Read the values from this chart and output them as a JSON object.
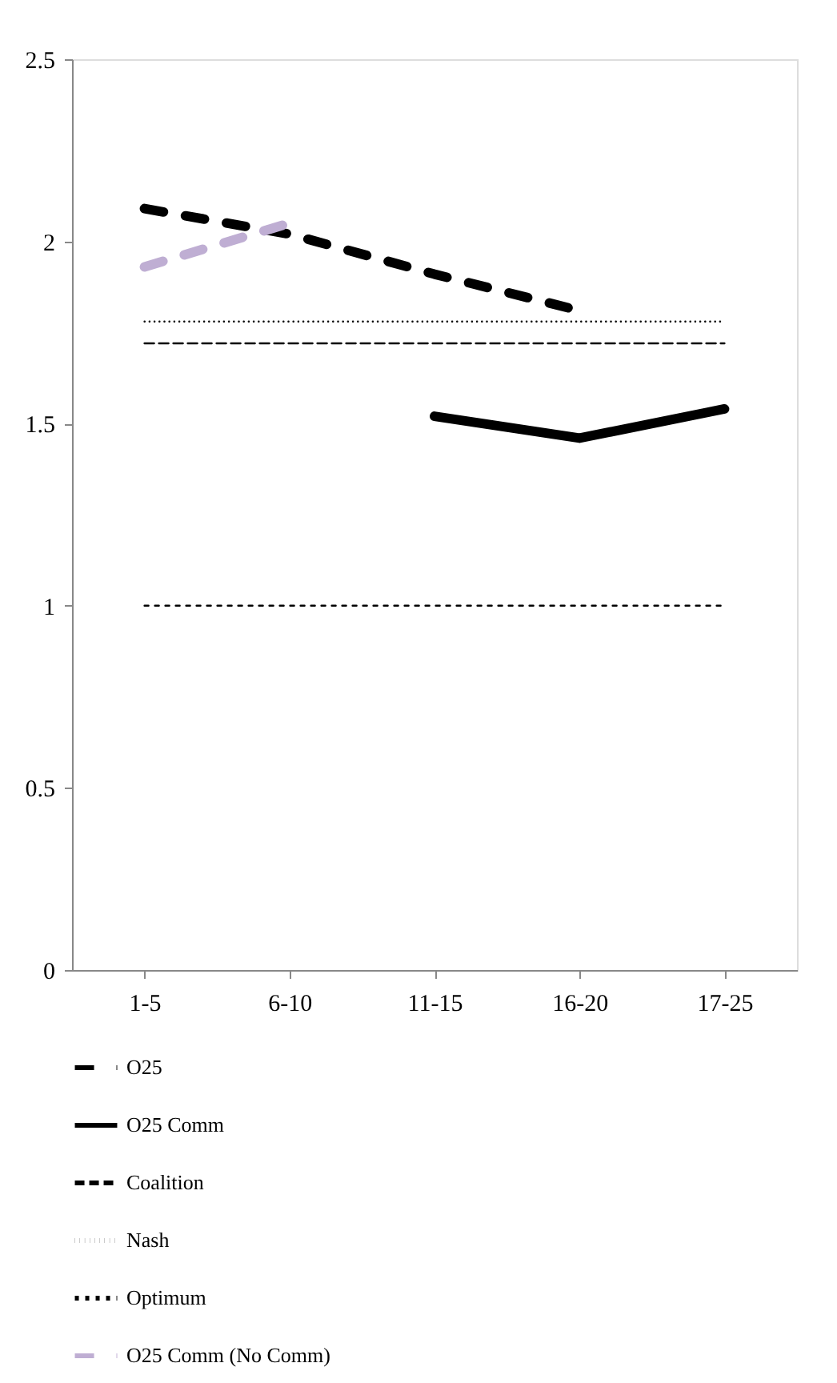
{
  "chart_data": {
    "type": "line",
    "categories": [
      "1-5",
      "6-10",
      "11-15",
      "16-20",
      "17-25"
    ],
    "series": [
      {
        "name": "O25",
        "color": "#000000",
        "line_style": "dashed",
        "values": [
          2.09,
          2.02,
          1.91,
          1.81,
          null
        ]
      },
      {
        "name": "O25 Comm",
        "color": "#000000",
        "line_style": "solid",
        "values": [
          null,
          null,
          1.52,
          1.46,
          1.54
        ]
      },
      {
        "name": "Coalition",
        "color": "#000000",
        "line_style": "dashed",
        "values": [
          1.72,
          1.72,
          1.72,
          1.72,
          1.72
        ]
      },
      {
        "name": "Nash",
        "color": "#000000",
        "line_style": "dotted",
        "values": [
          1.78,
          1.78,
          1.78,
          1.78,
          1.78
        ]
      },
      {
        "name": "Optimum",
        "color": "#000000",
        "line_style": "dashed",
        "values": [
          1.0,
          1.0,
          1.0,
          1.0,
          1.0
        ]
      },
      {
        "name": "O25 Comm (No Comm)",
        "color": "#bfaed3",
        "line_style": "dashed",
        "values": [
          1.93,
          2.05,
          null,
          null,
          null
        ]
      }
    ],
    "ylim": [
      0,
      2.5
    ],
    "yticks": [
      {
        "value": 0,
        "label": "0"
      },
      0.5,
      {
        "value": 1,
        "label": "1"
      },
      1.5,
      {
        "value": 2,
        "label": "2"
      },
      2.5
    ],
    "grid": false,
    "legend": "bottom",
    "marker": "none"
  }
}
